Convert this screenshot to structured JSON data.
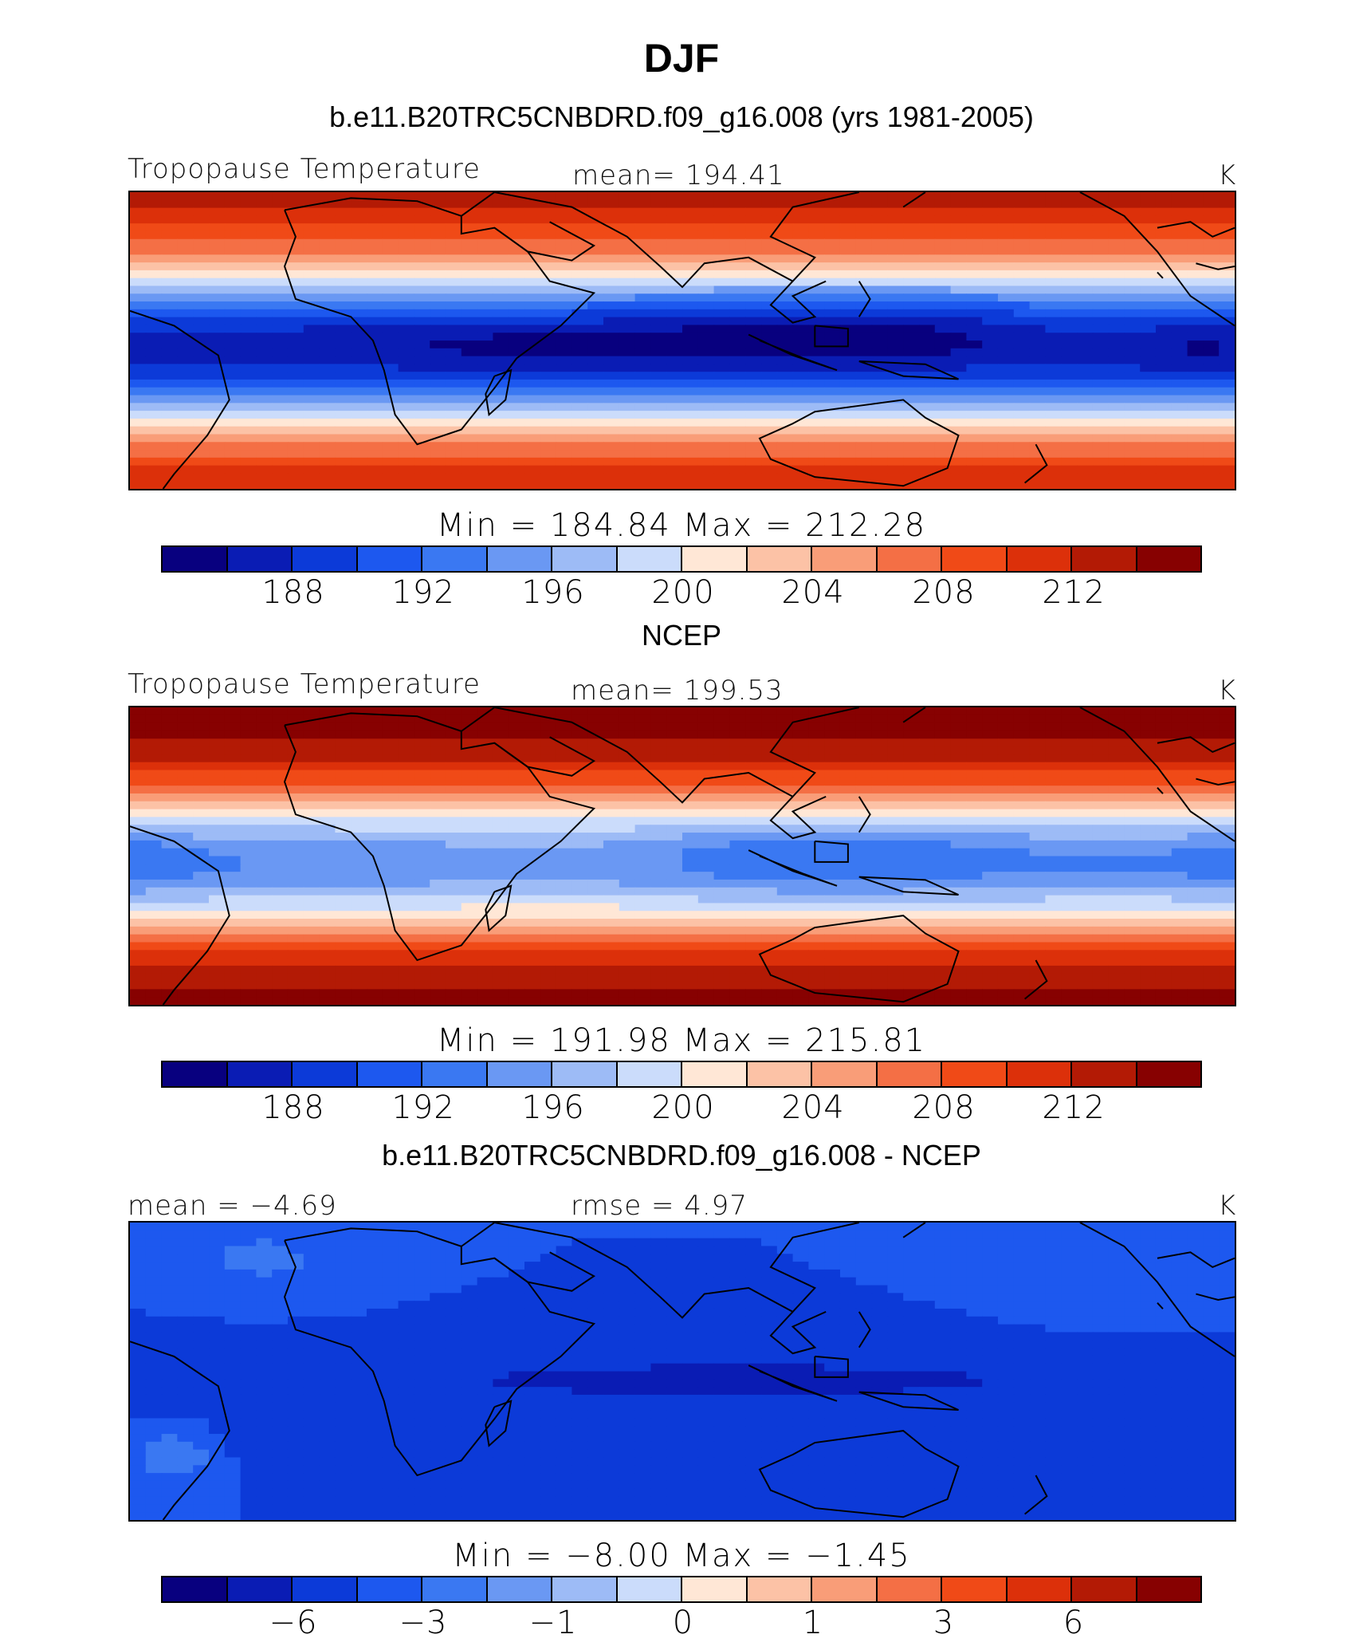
{
  "figure": {
    "title": "DJF"
  },
  "palette": [
    "#08007f",
    "#0a1cb4",
    "#0c3ad8",
    "#1d58ef",
    "#3a78f2",
    "#6a98f3",
    "#9dbbf6",
    "#cbdcfb",
    "#ffe7d6",
    "#fcc2a6",
    "#f99d78",
    "#f46f45",
    "#f04a17",
    "#dc300a",
    "#b31a05",
    "#870101"
  ],
  "panels": [
    {
      "title": "b.e11.B20TRC5CNBDRD.f09_g16.008 (yrs 1981-2005)",
      "left_label": "Tropopause  Temperature",
      "center_label": "mean=  194.41",
      "right_label": "K",
      "minmax": "Min  =  184.84  Max  =  212.28",
      "ticks": [
        "188",
        "192",
        "196",
        "200",
        "204",
        "208",
        "212"
      ],
      "field": "model"
    },
    {
      "title": "NCEP",
      "left_label": "Tropopause  Temperature",
      "center_label": "mean=  199.53",
      "right_label": "K",
      "minmax": "Min  =  191.98  Max  =  215.81",
      "ticks": [
        "188",
        "192",
        "196",
        "200",
        "204",
        "208",
        "212"
      ],
      "field": "obs"
    },
    {
      "title": "b.e11.B20TRC5CNBDRD.f09_g16.008 - NCEP",
      "left_label": "mean =    −4.69",
      "center_label": "rmse =       4.97",
      "right_label": "K",
      "minmax": "Min  =    −8.00  Max  =    −1.45",
      "ticks": [
        "−6",
        "−3",
        "−1",
        "0",
        "1",
        "3",
        "6"
      ],
      "field": "diff"
    }
  ]
}
